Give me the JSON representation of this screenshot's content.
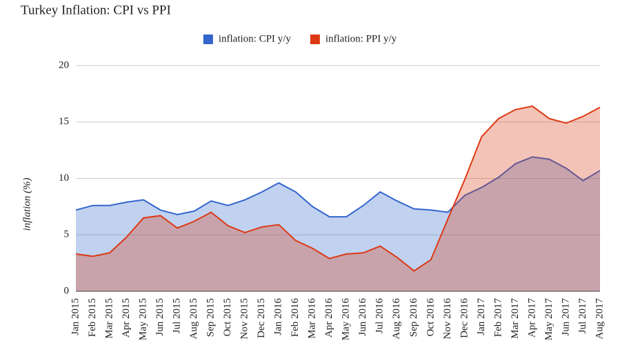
{
  "chart_data": {
    "type": "area",
    "title": "Turkey Inflation: CPI vs PPI",
    "y_label": "inflation (%)",
    "categories": [
      "Jan 2015",
      "Feb 2015",
      "Mar 2015",
      "Apr 2015",
      "May 2015",
      "Jun 2015",
      "Jul 2015",
      "Aug 2015",
      "Sep 2015",
      "Oct 2015",
      "Nov 2015",
      "Dec 2015",
      "Jan 2016",
      "Feb 2016",
      "Mar 2016",
      "Apr 2016",
      "May 2016",
      "Jun 2016",
      "Jul 2016",
      "Aug 2016",
      "Sep 2016",
      "Oct 2016",
      "Nov 2016",
      "Dec 2016",
      "Jan 2017",
      "Feb 2017",
      "Mar 2017",
      "Apr 2017",
      "May 2017",
      "Jun 2017",
      "Jul 2017",
      "Aug 2017"
    ],
    "series": [
      {
        "name": "inflation: CPI y/y",
        "color": "#3366cc",
        "values": [
          7.2,
          7.6,
          7.6,
          7.9,
          8.1,
          7.2,
          6.8,
          7.1,
          8.0,
          7.6,
          8.1,
          8.8,
          9.6,
          8.8,
          7.5,
          6.6,
          6.6,
          7.6,
          8.8,
          8.0,
          7.3,
          7.2,
          7.0,
          8.5,
          9.2,
          10.1,
          11.3,
          11.9,
          11.7,
          10.9,
          9.8,
          10.7
        ]
      },
      {
        "name": "inflation: PPI y/y",
        "color": "#dc3912",
        "values": [
          3.3,
          3.1,
          3.4,
          4.8,
          6.5,
          6.7,
          5.6,
          6.2,
          7.0,
          5.8,
          5.2,
          5.7,
          5.9,
          4.5,
          3.8,
          2.9,
          3.3,
          3.4,
          4.0,
          3.0,
          1.8,
          2.8,
          6.4,
          9.9,
          13.7,
          15.3,
          16.1,
          16.4,
          15.3,
          14.9,
          15.5,
          16.3
        ]
      }
    ],
    "ylim": [
      0,
      20
    ],
    "yticks": [
      0,
      5,
      10,
      15,
      20
    ],
    "grid": true,
    "legend": "top"
  }
}
